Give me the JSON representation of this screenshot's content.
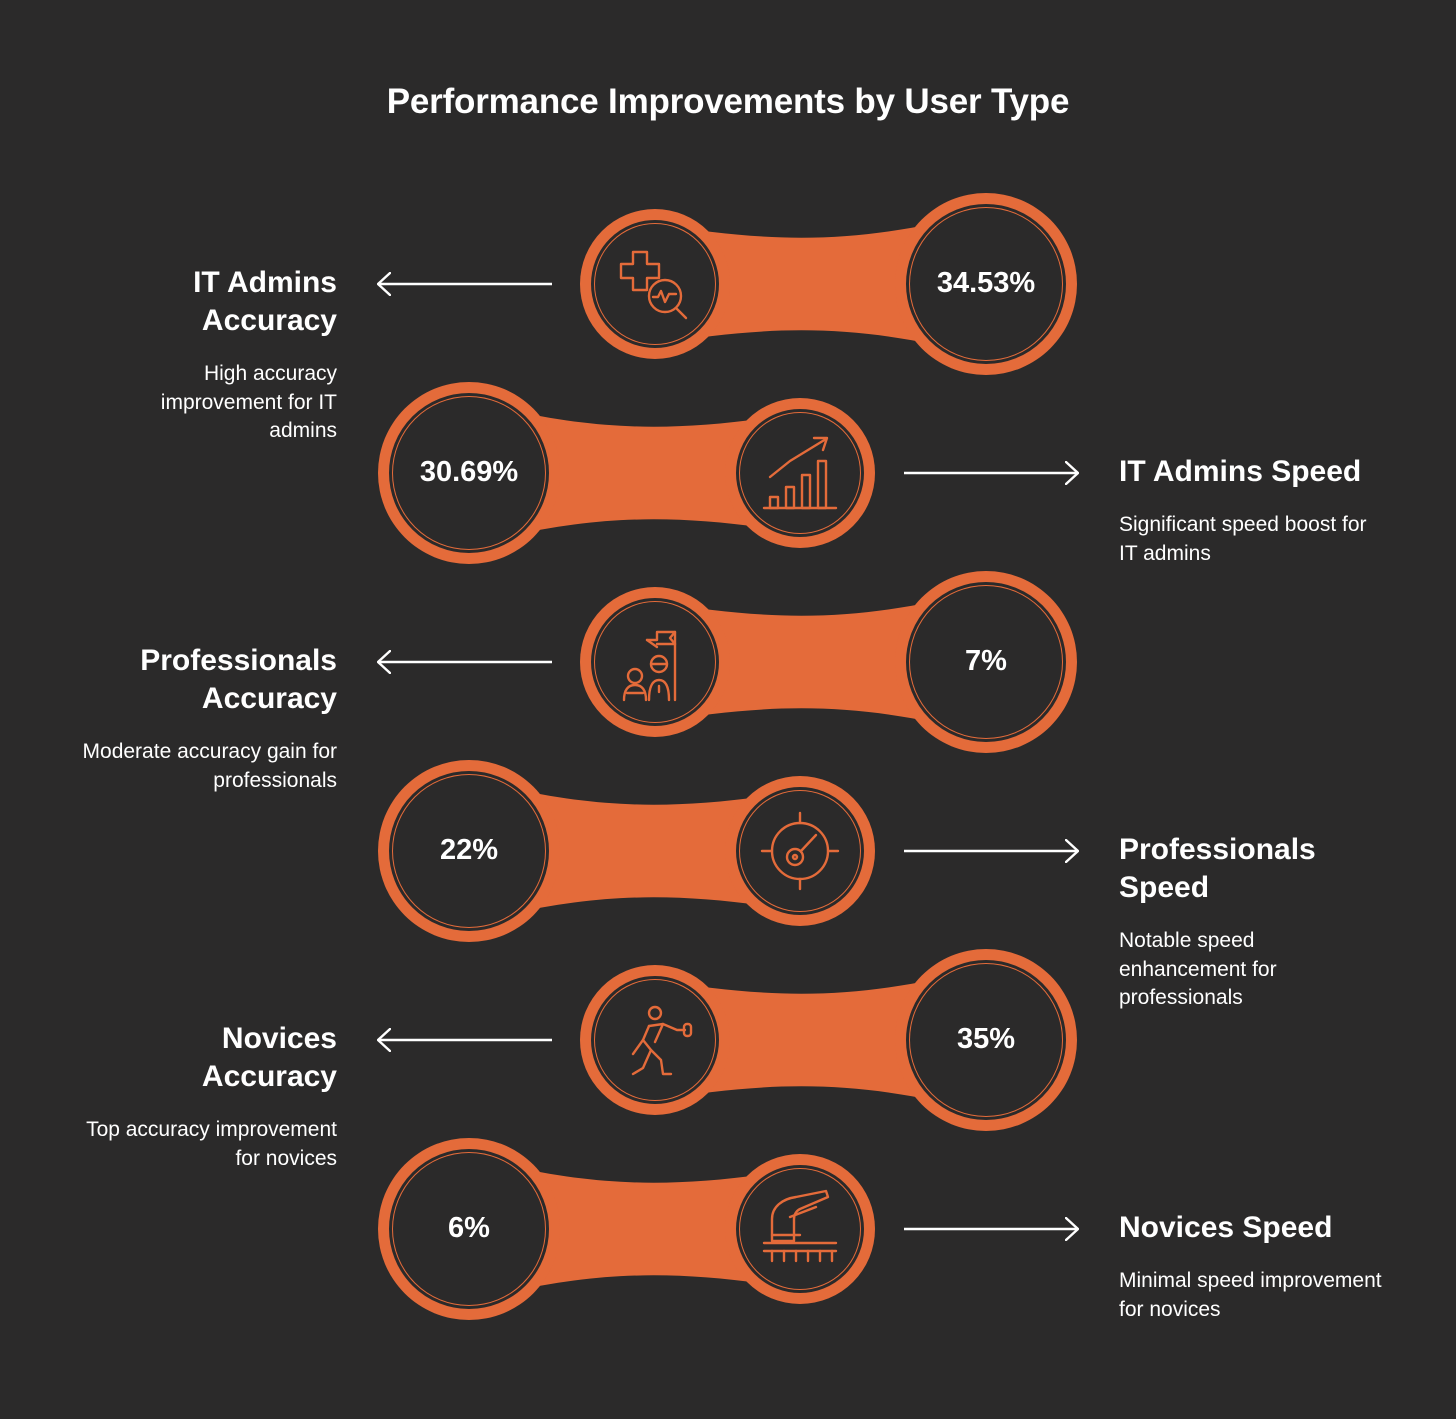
{
  "title": "Performance Improvements by User Type",
  "colors": {
    "background": "#2b2a2a",
    "accent": "#e46b3a",
    "text": "#ffffff"
  },
  "steps": [
    {
      "heading": "IT Admins Accuracy",
      "description": "High accuracy improvement for IT admins",
      "value": "34.53%",
      "icon": "medical-cross-monitor-icon",
      "side": "left"
    },
    {
      "heading": "IT Admins Speed",
      "description": "Significant speed boost for IT admins",
      "value": "30.69%",
      "icon": "growth-bar-chart-icon",
      "side": "right"
    },
    {
      "heading": "Professionals Accuracy",
      "description": "Moderate accuracy gain for professionals",
      "value": "7%",
      "icon": "team-goal-flag-icon",
      "side": "left"
    },
    {
      "heading": "Professionals Speed",
      "description": "Notable speed enhancement for professionals",
      "value": "22%",
      "icon": "target-speedometer-icon",
      "side": "right"
    },
    {
      "heading": "Novices Accuracy",
      "description": "Top accuracy improvement for novices",
      "value": "35%",
      "icon": "learner-figure-icon",
      "side": "left"
    },
    {
      "heading": "Novices Speed",
      "description": "Minimal speed improvement for novices",
      "value": "6%",
      "icon": "high-speed-train-icon",
      "side": "right"
    }
  ]
}
